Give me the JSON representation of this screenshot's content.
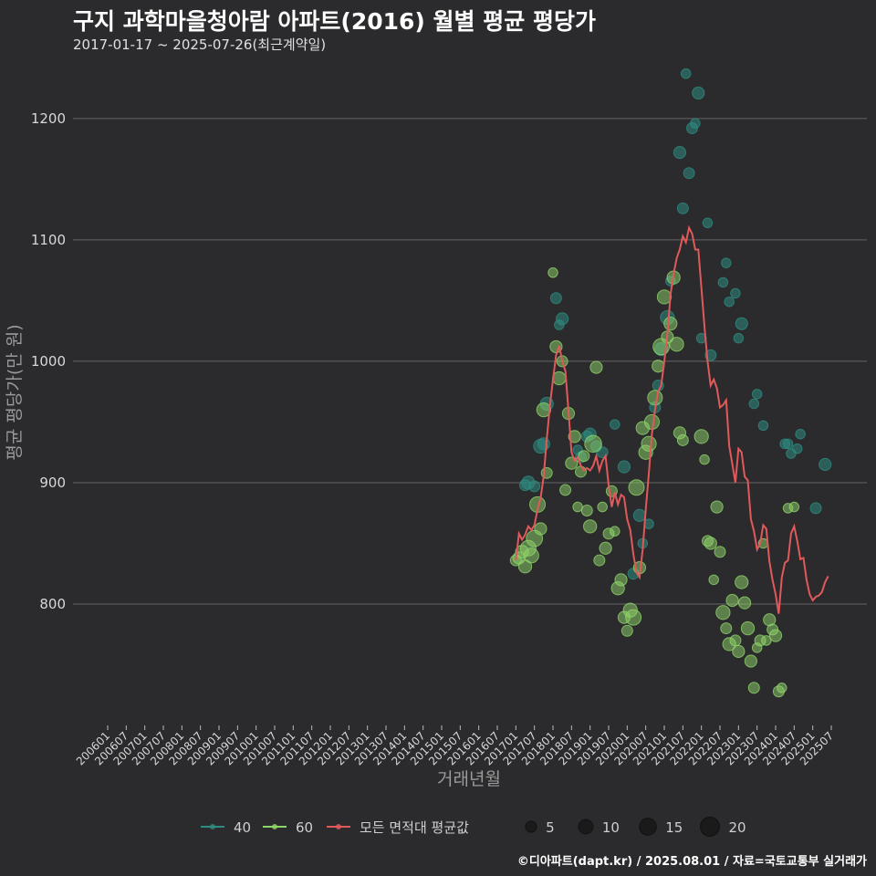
{
  "header": {
    "title": "구지 과학마을청아람 아파트(2016) 월별 평균 평당가",
    "subtitle": "2017-01-17 ~ 2025-07-26(최근계약일)"
  },
  "caption": "©디아파트(dapt.kr) / 2025.08.01 / 자료=국토교통부 실거래가",
  "colors": {
    "background": "#2b2a2c",
    "grid": "#666666",
    "series_40": "#2e8b80",
    "series_60": "#8fd46a",
    "avg_line": "#e0595b",
    "size_legend": "#1a1a1a"
  },
  "chart_data": {
    "type": "scatter",
    "title": "구지 과학마을청아람 아파트(2016) 월별 평균 평당가",
    "xlabel": "거래년월",
    "ylabel": "평균 평당가(만 원)",
    "ylim": [
      700,
      1245
    ],
    "y_ticks": [
      800,
      900,
      1000,
      1100,
      1200
    ],
    "x_ticks": [
      "200601",
      "200607",
      "200701",
      "200707",
      "200801",
      "200807",
      "200901",
      "200907",
      "201001",
      "201007",
      "201101",
      "201107",
      "201201",
      "201207",
      "201301",
      "201307",
      "201401",
      "201407",
      "201501",
      "201507",
      "201601",
      "201607",
      "201701",
      "201707",
      "201801",
      "201807",
      "201901",
      "201907",
      "202001",
      "202007",
      "202101",
      "202107",
      "202201",
      "202207",
      "202301",
      "202307",
      "202401",
      "202407",
      "202501",
      "202507"
    ],
    "x_range": [
      "2006-01",
      "2025-07"
    ],
    "grid": true,
    "legend": {
      "position": "bottom",
      "entries": [
        {
          "label": "40",
          "series": "40"
        },
        {
          "label": "60",
          "series": "60"
        },
        {
          "label": "모든 면적대 평균값",
          "series": "avg"
        }
      ],
      "size_entries": [
        {
          "label": "5",
          "value": 5
        },
        {
          "label": "10",
          "value": 10
        },
        {
          "label": "15",
          "value": 15
        },
        {
          "label": "20",
          "value": 20
        }
      ]
    },
    "series": [
      {
        "name": "40",
        "points": [
          [
            "2017-04",
            898,
            3
          ],
          [
            "2017-05",
            900,
            5
          ],
          [
            "2017-07",
            897,
            3
          ],
          [
            "2017-09",
            930,
            6
          ],
          [
            "2017-10",
            932,
            4
          ],
          [
            "2017-11",
            965,
            5
          ],
          [
            "2018-02",
            1052,
            3
          ],
          [
            "2018-03",
            1030,
            2
          ],
          [
            "2018-04",
            1035,
            4
          ],
          [
            "2018-09",
            927,
            2
          ],
          [
            "2018-10",
            921,
            3
          ],
          [
            "2018-12",
            938,
            3
          ],
          [
            "2019-01",
            940,
            4
          ],
          [
            "2019-03",
            930,
            3
          ],
          [
            "2019-05",
            925,
            3
          ],
          [
            "2019-09",
            948,
            2
          ],
          [
            "2019-12",
            913,
            4
          ],
          [
            "2020-03",
            825,
            3
          ],
          [
            "2020-05",
            873,
            4
          ],
          [
            "2020-06",
            850,
            2
          ],
          [
            "2020-08",
            866,
            2
          ],
          [
            "2020-10",
            962,
            3
          ],
          [
            "2020-11",
            980,
            3
          ],
          [
            "2020-12",
            1010,
            5
          ],
          [
            "2021-02",
            1036,
            6
          ],
          [
            "2021-03",
            1066,
            2
          ],
          [
            "2021-06",
            1172,
            4
          ],
          [
            "2021-07",
            1126,
            3
          ],
          [
            "2021-08",
            1237,
            2
          ],
          [
            "2021-09",
            1155,
            3
          ],
          [
            "2021-10",
            1192,
            3
          ],
          [
            "2021-11",
            1196,
            2
          ],
          [
            "2021-12",
            1221,
            4
          ],
          [
            "2022-01",
            1019,
            2
          ],
          [
            "2022-03",
            1114,
            2
          ],
          [
            "2022-04",
            1005,
            3
          ],
          [
            "2022-08",
            1065,
            2
          ],
          [
            "2022-09",
            1081,
            2
          ],
          [
            "2022-10",
            1049,
            2
          ],
          [
            "2022-12",
            1056,
            2
          ],
          [
            "2023-01",
            1019,
            2
          ],
          [
            "2023-02",
            1031,
            4
          ],
          [
            "2023-06",
            965,
            2
          ],
          [
            "2023-07",
            973,
            2
          ],
          [
            "2023-09",
            947,
            2
          ],
          [
            "2024-04",
            932,
            2
          ],
          [
            "2024-05",
            932,
            2
          ],
          [
            "2024-06",
            924,
            2
          ],
          [
            "2024-08",
            928,
            2
          ],
          [
            "2024-09",
            940,
            2
          ],
          [
            "2025-02",
            879,
            3
          ],
          [
            "2025-05",
            915,
            4
          ]
        ]
      },
      {
        "name": "60",
        "points": [
          [
            "2017-01",
            836,
            3
          ],
          [
            "2017-02",
            838,
            4
          ],
          [
            "2017-03",
            843,
            5
          ],
          [
            "2017-04",
            831,
            5
          ],
          [
            "2017-05",
            846,
            8
          ],
          [
            "2017-06",
            840,
            7
          ],
          [
            "2017-07",
            854,
            9
          ],
          [
            "2017-08",
            882,
            8
          ],
          [
            "2017-09",
            862,
            4
          ],
          [
            "2017-10",
            960,
            6
          ],
          [
            "2017-11",
            908,
            3
          ],
          [
            "2018-01",
            1073,
            2
          ],
          [
            "2018-02",
            1012,
            4
          ],
          [
            "2018-03",
            986,
            5
          ],
          [
            "2018-04",
            1000,
            3
          ],
          [
            "2018-05",
            894,
            3
          ],
          [
            "2018-06",
            957,
            4
          ],
          [
            "2018-07",
            916,
            4
          ],
          [
            "2018-08",
            938,
            4
          ],
          [
            "2018-09",
            880,
            2
          ],
          [
            "2018-10",
            909,
            3
          ],
          [
            "2018-11",
            922,
            3
          ],
          [
            "2018-12",
            877,
            3
          ],
          [
            "2019-01",
            864,
            5
          ],
          [
            "2019-02",
            932,
            10
          ],
          [
            "2019-03",
            995,
            4
          ],
          [
            "2019-04",
            836,
            3
          ],
          [
            "2019-05",
            880,
            2
          ],
          [
            "2019-06",
            846,
            4
          ],
          [
            "2019-07",
            858,
            3
          ],
          [
            "2019-08",
            893,
            3
          ],
          [
            "2019-09",
            860,
            2
          ],
          [
            "2019-10",
            813,
            5
          ],
          [
            "2019-11",
            820,
            4
          ],
          [
            "2019-12",
            789,
            4
          ],
          [
            "2020-01",
            778,
            3
          ],
          [
            "2020-02",
            795,
            6
          ],
          [
            "2020-03",
            789,
            8
          ],
          [
            "2020-04",
            896,
            8
          ],
          [
            "2020-05",
            830,
            4
          ],
          [
            "2020-06",
            945,
            5
          ],
          [
            "2020-07",
            925,
            6
          ],
          [
            "2020-08",
            932,
            7
          ],
          [
            "2020-09",
            950,
            7
          ],
          [
            "2020-10",
            970,
            7
          ],
          [
            "2020-11",
            996,
            4
          ],
          [
            "2020-12",
            1012,
            9
          ],
          [
            "2021-01",
            1053,
            6
          ],
          [
            "2021-02",
            1020,
            4
          ],
          [
            "2021-03",
            1031,
            5
          ],
          [
            "2021-04",
            1069,
            5
          ],
          [
            "2021-05",
            1014,
            6
          ],
          [
            "2021-06",
            941,
            4
          ],
          [
            "2021-07",
            935,
            3
          ],
          [
            "2022-01",
            938,
            6
          ],
          [
            "2022-02",
            919,
            2
          ],
          [
            "2022-03",
            852,
            3
          ],
          [
            "2022-04",
            850,
            4
          ],
          [
            "2022-05",
            820,
            2
          ],
          [
            "2022-06",
            880,
            4
          ],
          [
            "2022-07",
            843,
            3
          ],
          [
            "2022-08",
            793,
            6
          ],
          [
            "2022-09",
            780,
            3
          ],
          [
            "2022-10",
            767,
            5
          ],
          [
            "2022-11",
            803,
            4
          ],
          [
            "2022-12",
            770,
            3
          ],
          [
            "2023-01",
            761,
            4
          ],
          [
            "2023-02",
            818,
            5
          ],
          [
            "2023-03",
            801,
            4
          ],
          [
            "2023-04",
            780,
            5
          ],
          [
            "2023-05",
            753,
            4
          ],
          [
            "2023-06",
            731,
            3
          ],
          [
            "2023-07",
            764,
            2
          ],
          [
            "2023-08",
            770,
            3
          ],
          [
            "2023-09",
            850,
            2
          ],
          [
            "2023-10",
            770,
            2
          ],
          [
            "2023-11",
            787,
            4
          ],
          [
            "2023-12",
            779,
            3
          ],
          [
            "2024-01",
            774,
            4
          ],
          [
            "2024-02",
            728,
            3
          ],
          [
            "2024-03",
            731,
            2
          ],
          [
            "2024-05",
            879,
            2
          ],
          [
            "2024-07",
            880,
            2
          ]
        ]
      },
      {
        "name": "모든 면적대 평균값",
        "values": [
          [
            "2017-01",
            836
          ],
          [
            "2017-02",
            858
          ],
          [
            "2017-03",
            853
          ],
          [
            "2017-04",
            857
          ],
          [
            "2017-05",
            864
          ],
          [
            "2017-06",
            861
          ],
          [
            "2017-07",
            865
          ],
          [
            "2017-08",
            878
          ],
          [
            "2017-09",
            887
          ],
          [
            "2017-10",
            905
          ],
          [
            "2017-11",
            936
          ],
          [
            "2017-12",
            963
          ],
          [
            "2018-01",
            985
          ],
          [
            "2018-02",
            1005
          ],
          [
            "2018-03",
            1013
          ],
          [
            "2018-04",
            1000
          ],
          [
            "2018-05",
            992
          ],
          [
            "2018-06",
            960
          ],
          [
            "2018-07",
            925
          ],
          [
            "2018-08",
            918
          ],
          [
            "2018-09",
            921
          ],
          [
            "2018-10",
            914
          ],
          [
            "2018-11",
            910
          ],
          [
            "2018-12",
            912
          ],
          [
            "2019-01",
            910
          ],
          [
            "2019-02",
            914
          ],
          [
            "2019-03",
            922
          ],
          [
            "2019-04",
            910
          ],
          [
            "2019-05",
            918
          ],
          [
            "2019-06",
            922
          ],
          [
            "2019-07",
            898
          ],
          [
            "2019-08",
            880
          ],
          [
            "2019-09",
            892
          ],
          [
            "2019-10",
            882
          ],
          [
            "2019-11",
            890
          ],
          [
            "2019-12",
            888
          ],
          [
            "2020-01",
            870
          ],
          [
            "2020-02",
            861
          ],
          [
            "2020-03",
            841
          ],
          [
            "2020-04",
            826
          ],
          [
            "2020-05",
            822
          ],
          [
            "2020-06",
            845
          ],
          [
            "2020-07",
            878
          ],
          [
            "2020-08",
            908
          ],
          [
            "2020-09",
            940
          ],
          [
            "2020-10",
            960
          ],
          [
            "2020-11",
            975
          ],
          [
            "2020-12",
            980
          ],
          [
            "2021-01",
            1000
          ],
          [
            "2021-02",
            1022
          ],
          [
            "2021-03",
            1055
          ],
          [
            "2021-04",
            1072
          ],
          [
            "2021-05",
            1085
          ],
          [
            "2021-06",
            1092
          ],
          [
            "2021-07",
            1103
          ],
          [
            "2021-08",
            1098
          ],
          [
            "2021-09",
            1110
          ],
          [
            "2021-10",
            1105
          ],
          [
            "2021-11",
            1092
          ],
          [
            "2021-12",
            1092
          ],
          [
            "2022-01",
            1060
          ],
          [
            "2022-02",
            1028
          ],
          [
            "2022-03",
            1000
          ],
          [
            "2022-04",
            980
          ],
          [
            "2022-05",
            985
          ],
          [
            "2022-06",
            978
          ],
          [
            "2022-07",
            962
          ],
          [
            "2022-08",
            964
          ],
          [
            "2022-09",
            968
          ],
          [
            "2022-10",
            930
          ],
          [
            "2022-11",
            915
          ],
          [
            "2022-12",
            900
          ],
          [
            "2023-01",
            928
          ],
          [
            "2023-02",
            925
          ],
          [
            "2023-03",
            905
          ],
          [
            "2023-04",
            902
          ],
          [
            "2023-05",
            870
          ],
          [
            "2023-06",
            860
          ],
          [
            "2023-07",
            845
          ],
          [
            "2023-08",
            850
          ],
          [
            "2023-09",
            865
          ],
          [
            "2023-10",
            862
          ],
          [
            "2023-11",
            835
          ],
          [
            "2023-12",
            820
          ],
          [
            "2024-01",
            808
          ],
          [
            "2024-02",
            792
          ],
          [
            "2024-03",
            822
          ],
          [
            "2024-04",
            834
          ],
          [
            "2024-05",
            836
          ],
          [
            "2024-06",
            858
          ],
          [
            "2024-07",
            864
          ],
          [
            "2024-08",
            852
          ],
          [
            "2024-09",
            837
          ],
          [
            "2024-10",
            838
          ],
          [
            "2024-11",
            820
          ],
          [
            "2024-12",
            808
          ],
          [
            "2025-01",
            803
          ],
          [
            "2025-02",
            806
          ],
          [
            "2025-03",
            807
          ],
          [
            "2025-04",
            810
          ],
          [
            "2025-05",
            818
          ],
          [
            "2025-06",
            823
          ]
        ]
      }
    ]
  }
}
